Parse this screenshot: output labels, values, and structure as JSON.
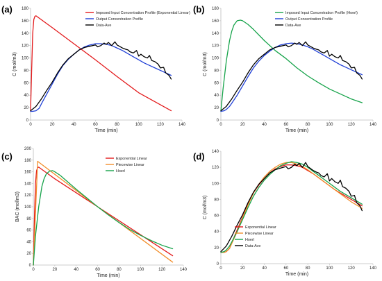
{
  "chart_data": [
    {
      "panel_label": "(a)",
      "type": "line",
      "xlabel": "Time (min)",
      "ylabel": "C (mol/m3)",
      "xlim": [
        0,
        140
      ],
      "ylim": [
        0,
        180
      ],
      "xticks": [
        0,
        20,
        40,
        60,
        80,
        100,
        120,
        140
      ],
      "yticks": [
        0,
        20,
        40,
        60,
        80,
        100,
        120,
        140,
        160,
        180
      ],
      "legend_position": "top-right",
      "grid": false,
      "series": [
        {
          "name": "Imposed Input Concentration Profile (Exponential Linear)",
          "color": "#e31a1c",
          "x": [
            0,
            1,
            2,
            3,
            4,
            5,
            20,
            40,
            60,
            80,
            100,
            130
          ],
          "y": [
            14,
            80,
            140,
            162,
            167,
            168,
            149,
            123,
            97,
            70,
            44,
            15
          ]
        },
        {
          "name": "Output Concentration Profile",
          "color": "#1f3fd6",
          "x": [
            0,
            2,
            5,
            8,
            10,
            15,
            20,
            25,
            30,
            35,
            40,
            45,
            50,
            55,
            60,
            65,
            70,
            75,
            80,
            85,
            90,
            95,
            100,
            105,
            110,
            115,
            120,
            125,
            130
          ],
          "y": [
            14,
            14,
            15,
            19,
            26,
            42,
            58,
            74,
            88,
            98,
            106,
            113,
            118,
            121,
            123,
            123,
            122,
            120,
            116,
            112,
            107,
            102,
            97,
            92,
            88,
            84,
            80,
            76,
            72
          ]
        },
        {
          "name": "Data-Ave",
          "color": "#000000",
          "x": [
            0,
            5,
            10,
            15,
            20,
            25,
            30,
            35,
            40,
            45,
            50,
            55,
            60,
            62,
            65,
            68,
            70,
            72,
            75,
            78,
            80,
            82,
            85,
            88,
            90,
            92,
            95,
            98,
            100,
            102,
            105,
            108,
            110,
            112,
            115,
            118,
            120,
            123,
            125,
            128,
            130
          ],
          "y": [
            15,
            22,
            34,
            48,
            61,
            76,
            89,
            99,
            106,
            113,
            117,
            119,
            121,
            118,
            120,
            124,
            122,
            125,
            120,
            126,
            121,
            119,
            116,
            114,
            113,
            110,
            108,
            112,
            103,
            106,
            102,
            100,
            104,
            96,
            94,
            90,
            84,
            85,
            76,
            72,
            66
          ]
        }
      ]
    },
    {
      "panel_label": "(b)",
      "type": "line",
      "xlabel": "Time (min)",
      "ylabel": "C (mol/m3)",
      "xlim": [
        0,
        140
      ],
      "ylim": [
        0,
        180
      ],
      "xticks": [
        0,
        20,
        40,
        60,
        80,
        100,
        120,
        140
      ],
      "yticks": [
        0,
        20,
        40,
        60,
        80,
        100,
        120,
        140,
        160,
        180
      ],
      "legend_position": "top-right",
      "grid": false,
      "series": [
        {
          "name": "Imposed Input Concentration Profile (Hoerl)",
          "color": "#16a34a",
          "x": [
            0,
            2,
            5,
            8,
            10,
            12,
            15,
            18,
            20,
            25,
            30,
            40,
            50,
            60,
            70,
            80,
            90,
            100,
            110,
            120,
            130
          ],
          "y": [
            14,
            50,
            95,
            128,
            143,
            153,
            160,
            161,
            160,
            154,
            146,
            128,
            112,
            99,
            84,
            71,
            60,
            50,
            42,
            34,
            28
          ]
        },
        {
          "name": "Output Concentration Profile",
          "color": "#1f3fd6",
          "x": [
            0,
            3,
            5,
            8,
            10,
            15,
            20,
            25,
            30,
            35,
            40,
            45,
            50,
            55,
            60,
            65,
            70,
            75,
            80,
            85,
            90,
            95,
            100,
            105,
            110,
            115,
            120,
            125,
            130
          ],
          "y": [
            14,
            15,
            17,
            22,
            27,
            40,
            55,
            70,
            84,
            95,
            104,
            111,
            117,
            121,
            123,
            124,
            123,
            121,
            118,
            114,
            109,
            104,
            99,
            94,
            89,
            85,
            81,
            77,
            73
          ]
        },
        {
          "name": "Data-Ave",
          "color": "#000000",
          "x": [
            0,
            5,
            10,
            15,
            20,
            25,
            30,
            35,
            40,
            45,
            50,
            55,
            60,
            62,
            65,
            68,
            70,
            72,
            75,
            78,
            80,
            82,
            85,
            88,
            90,
            92,
            95,
            98,
            100,
            102,
            105,
            108,
            110,
            112,
            115,
            118,
            120,
            123,
            125,
            128,
            130
          ],
          "y": [
            15,
            22,
            34,
            48,
            61,
            76,
            89,
            99,
            106,
            113,
            117,
            119,
            121,
            118,
            120,
            124,
            122,
            125,
            120,
            126,
            121,
            119,
            116,
            114,
            113,
            110,
            108,
            112,
            103,
            106,
            102,
            100,
            104,
            96,
            94,
            90,
            84,
            85,
            76,
            72,
            66
          ]
        }
      ]
    },
    {
      "panel_label": "(c)",
      "type": "line",
      "xlabel": "Time (min)",
      "ylabel": "BAC (mol/m3)",
      "xlim": [
        0,
        140
      ],
      "ylim": [
        0,
        200
      ],
      "xticks": [
        0,
        20,
        40,
        60,
        80,
        100,
        120,
        140
      ],
      "yticks": [
        0,
        20,
        40,
        60,
        80,
        100,
        120,
        140,
        160,
        180,
        200
      ],
      "legend_position": "top-right",
      "grid": false,
      "series": [
        {
          "name": "Exponential Linear",
          "color": "#e31a1c",
          "x": [
            0,
            1,
            2,
            3,
            4,
            5,
            20,
            40,
            60,
            80,
            100,
            130
          ],
          "y": [
            0,
            80,
            140,
            162,
            167,
            168,
            148,
            124,
            100,
            76,
            52,
            16
          ]
        },
        {
          "name": "Piecewise Linear",
          "color": "#f28e2b",
          "x": [
            0,
            4,
            60,
            130
          ],
          "y": [
            0,
            178,
            100,
            5
          ]
        },
        {
          "name": "Hoerl",
          "color": "#16a34a",
          "x": [
            0,
            2,
            5,
            8,
            10,
            12,
            15,
            18,
            20,
            25,
            30,
            40,
            50,
            60,
            70,
            80,
            90,
            100,
            110,
            120,
            130
          ],
          "y": [
            0,
            50,
            100,
            135,
            148,
            156,
            161,
            162,
            160,
            154,
            146,
            130,
            115,
            100,
            86,
            73,
            61,
            51,
            42,
            34,
            28
          ]
        }
      ]
    },
    {
      "panel_label": "(d)",
      "type": "line",
      "xlabel": "Time (min)",
      "ylabel": "C (mol/m3)",
      "xlim": [
        0,
        140
      ],
      "ylim": [
        0,
        140
      ],
      "xticks": [
        0,
        20,
        40,
        60,
        80,
        100,
        120,
        140
      ],
      "yticks": [
        0,
        20,
        40,
        60,
        80,
        100,
        120,
        140
      ],
      "legend_position": "bottom-left",
      "grid": false,
      "series": [
        {
          "name": "Exponential Linear",
          "color": "#e31a1c",
          "x": [
            0,
            3,
            5,
            8,
            10,
            15,
            20,
            25,
            30,
            35,
            40,
            45,
            50,
            55,
            60,
            65,
            70,
            75,
            80,
            85,
            90,
            95,
            100,
            105,
            110,
            115,
            120,
            125,
            130
          ],
          "y": [
            14,
            14,
            15,
            19,
            26,
            42,
            58,
            74,
            88,
            98,
            106,
            113,
            118,
            121,
            123,
            123,
            122,
            120,
            116,
            112,
            107,
            102,
            97,
            92,
            88,
            84,
            80,
            76,
            72
          ]
        },
        {
          "name": "Piecewise Linear",
          "color": "#f28e2b",
          "x": [
            0,
            3,
            5,
            8,
            10,
            15,
            20,
            25,
            30,
            35,
            40,
            45,
            50,
            55,
            60,
            65,
            70,
            75,
            80,
            85,
            90,
            95,
            100,
            105,
            110,
            115,
            120,
            125,
            130
          ],
          "y": [
            14,
            14,
            15,
            19,
            25,
            40,
            57,
            73,
            88,
            99,
            108,
            115,
            120,
            124,
            126,
            126,
            124,
            121,
            117,
            112,
            107,
            102,
            97,
            92,
            87,
            82,
            77,
            73,
            69
          ]
        },
        {
          "name": "Hoerl",
          "color": "#16a34a",
          "x": [
            0,
            3,
            5,
            8,
            10,
            15,
            20,
            25,
            30,
            35,
            40,
            45,
            50,
            55,
            60,
            65,
            70,
            75,
            80,
            85,
            90,
            95,
            100,
            105,
            110,
            115,
            120,
            125,
            130
          ],
          "y": [
            14,
            15,
            17,
            22,
            27,
            40,
            55,
            70,
            84,
            95,
            104,
            111,
            117,
            122,
            125,
            127,
            126,
            124,
            120,
            115,
            110,
            105,
            100,
            95,
            90,
            86,
            82,
            78,
            74
          ]
        },
        {
          "name": "Data-Ave",
          "color": "#000000",
          "x": [
            0,
            5,
            10,
            15,
            20,
            25,
            30,
            35,
            40,
            45,
            50,
            55,
            60,
            62,
            65,
            68,
            70,
            72,
            75,
            78,
            80,
            82,
            85,
            88,
            90,
            92,
            95,
            98,
            100,
            102,
            105,
            108,
            110,
            112,
            115,
            118,
            120,
            123,
            125,
            128,
            130
          ],
          "y": [
            15,
            22,
            34,
            48,
            61,
            76,
            89,
            99,
            106,
            113,
            117,
            119,
            121,
            118,
            120,
            124,
            122,
            125,
            120,
            126,
            121,
            119,
            116,
            114,
            113,
            110,
            108,
            112,
            103,
            106,
            102,
            100,
            104,
            96,
            94,
            90,
            84,
            85,
            76,
            72,
            66
          ]
        }
      ]
    }
  ]
}
